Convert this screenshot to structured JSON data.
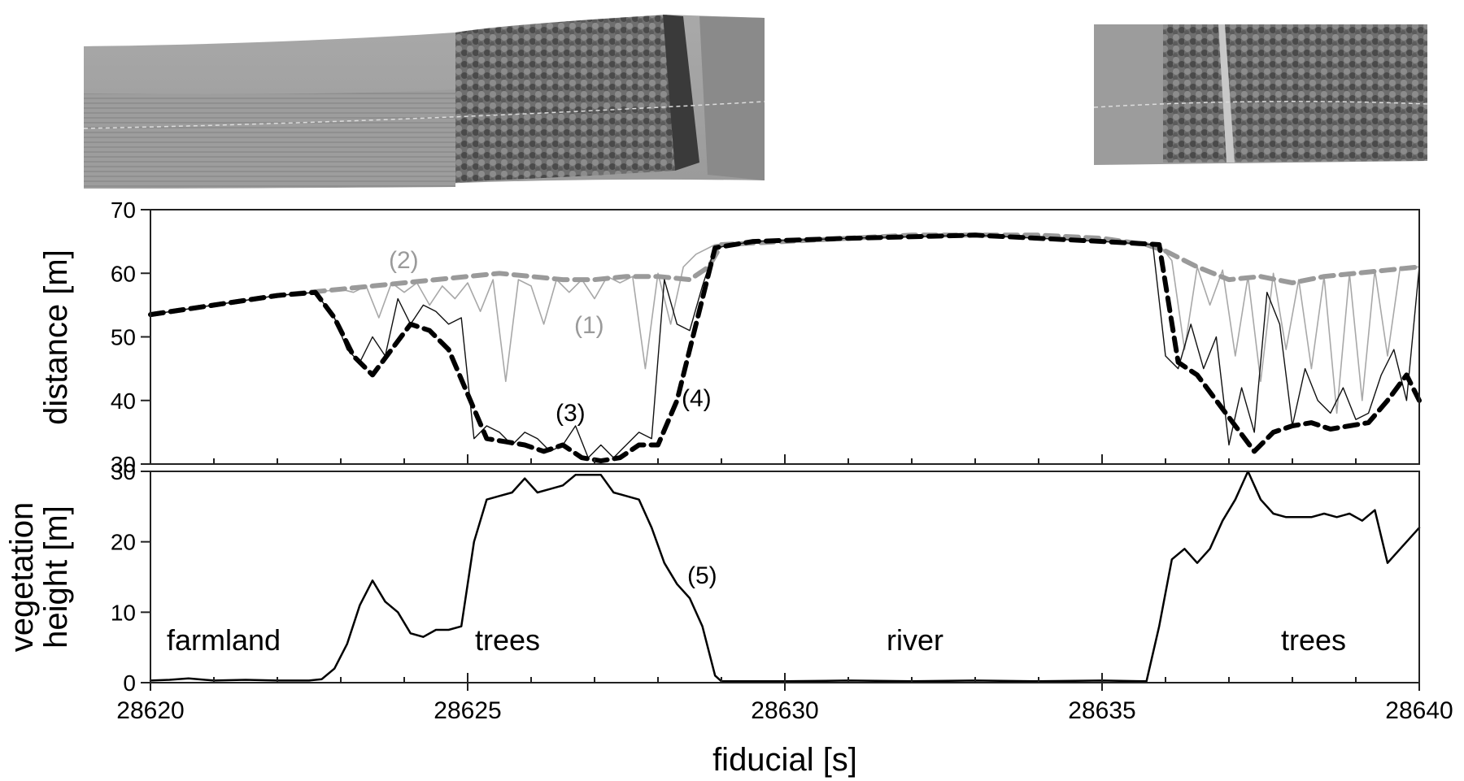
{
  "chart_data": [
    {
      "type": "line",
      "ylabel": "distance [m]",
      "xlim": [
        28620,
        28640
      ],
      "ylim": [
        30,
        70
      ],
      "yticks": [
        30,
        40,
        50,
        60,
        70
      ],
      "xticks": [
        28620,
        28625,
        28630,
        28635,
        28640
      ],
      "grid": false,
      "series": [
        {
          "id": "1",
          "style": "thin light gray",
          "x": [
            28620,
            28621,
            28622,
            28622.6,
            28623,
            28623.2,
            28623.4,
            28623.6,
            28623.8,
            28624.0,
            28624.2,
            28624.4,
            28624.6,
            28624.8,
            28625.0,
            28625.2,
            28625.4,
            28625.6,
            28625.8,
            28626.0,
            28626.2,
            28626.4,
            28626.6,
            28626.8,
            28627.0,
            28627.2,
            28627.4,
            28627.6,
            28627.8,
            28628.0,
            28628.2,
            28628.4,
            28628.6,
            28628.9,
            28629.5,
            28631,
            28633,
            28635,
            28635.9,
            28636.1,
            28636.3,
            28636.5,
            28636.7,
            28636.9,
            28637.1,
            28637.3,
            28637.5,
            28637.7,
            28637.9,
            28638.1,
            28638.3,
            28638.5,
            28638.7,
            28638.9,
            28639.1,
            28639.3,
            28639.5,
            28639.7,
            28640
          ],
          "y": [
            53.5,
            55,
            56.5,
            57,
            57.5,
            57,
            58,
            53,
            58.5,
            57,
            58.5,
            55,
            58,
            56,
            58.5,
            54,
            59,
            43,
            59,
            58,
            52,
            59,
            57,
            59,
            56,
            59.5,
            58.5,
            59.5,
            45,
            60,
            52,
            61,
            63,
            64.5,
            65,
            65.5,
            66,
            65,
            64.5,
            62,
            48,
            61,
            55,
            60.5,
            47,
            59.5,
            43,
            60,
            48,
            59,
            45,
            59.5,
            38,
            60,
            40,
            60.5,
            47,
            61,
            61
          ]
        },
        {
          "id": "2",
          "style": "thick gray dashed",
          "x": [
            28620,
            28621,
            28622,
            28622.5,
            28623,
            28623.5,
            28624,
            28624.5,
            28625,
            28625.5,
            28626,
            28626.5,
            28627,
            28627.5,
            28628,
            28628.5,
            28628.8,
            28629,
            28630,
            28631,
            28632,
            28633,
            28634,
            28635,
            28635.7,
            28636,
            28636.5,
            28637,
            28637.5,
            28638,
            28638.5,
            28639,
            28639.5,
            28640
          ],
          "y": [
            53.5,
            55,
            56.5,
            57,
            57.5,
            58,
            58.5,
            59,
            59.5,
            60,
            59.5,
            59,
            59,
            59.5,
            59.5,
            59,
            61,
            64.5,
            65,
            65.5,
            66,
            66,
            66,
            65.5,
            64.5,
            63.5,
            61,
            59,
            59.5,
            58.5,
            59.5,
            60,
            60.5,
            61
          ]
        },
        {
          "id": "3",
          "style": "thin black",
          "x": [
            28620,
            28621,
            28622,
            28622.6,
            28622.9,
            28623.1,
            28623.3,
            28623.5,
            28623.7,
            28623.9,
            28624.1,
            28624.3,
            28624.5,
            28624.7,
            28624.9,
            28625.1,
            28625.3,
            28625.5,
            28625.7,
            28625.9,
            28626.1,
            28626.3,
            28626.5,
            28626.7,
            28626.9,
            28627.1,
            28627.3,
            28627.5,
            28627.7,
            28627.9,
            28628.1,
            28628.3,
            28628.5,
            28628.7,
            28628.9,
            28629.5,
            28631,
            28633,
            28635,
            28635.8,
            28636.0,
            28636.2,
            28636.4,
            28636.6,
            28636.8,
            28637.0,
            28637.2,
            28637.4,
            28637.6,
            28637.8,
            28638.0,
            28638.2,
            28638.4,
            28638.6,
            28638.8,
            28639.0,
            28639.2,
            28639.4,
            28639.6,
            28639.8,
            28640
          ],
          "y": [
            53.5,
            55,
            56.5,
            57,
            53,
            48,
            46,
            50,
            47,
            56,
            52,
            55,
            54,
            52,
            53,
            34,
            36,
            35,
            33,
            35,
            34,
            32,
            33,
            36,
            31,
            33,
            31,
            33,
            35,
            34,
            59,
            52,
            51,
            58,
            64,
            65,
            65.5,
            66,
            65,
            64.5,
            47,
            45,
            52,
            45,
            50,
            33,
            42,
            35,
            57,
            52,
            36,
            45,
            40,
            38,
            42,
            37,
            38,
            44,
            48,
            40,
            61
          ]
        },
        {
          "id": "4",
          "style": "thick black dashed",
          "x": [
            28620,
            28621,
            28622,
            28622.6,
            28622.9,
            28623.2,
            28623.5,
            28623.8,
            28624.1,
            28624.4,
            28624.7,
            28625.0,
            28625.3,
            28625.6,
            28625.9,
            28626.2,
            28626.5,
            28626.8,
            28627.1,
            28627.4,
            28627.7,
            28628.0,
            28628.3,
            28628.6,
            28628.9,
            28629.5,
            28631,
            28633,
            28635,
            28635.9,
            28636.2,
            28636.5,
            28636.8,
            28637.1,
            28637.4,
            28637.7,
            28638.0,
            28638.3,
            28638.6,
            28638.9,
            28639.2,
            28639.5,
            28639.8,
            28640
          ],
          "y": [
            53.5,
            55,
            56.5,
            57,
            53,
            47,
            44,
            48,
            52,
            51,
            48,
            41,
            34,
            33.5,
            33,
            32,
            33,
            31,
            30.5,
            31,
            33,
            33,
            40,
            52,
            64,
            65,
            65.5,
            66,
            65,
            64.5,
            46,
            44,
            40,
            36,
            32,
            35,
            36,
            36.5,
            35.5,
            36,
            36.5,
            40,
            44,
            40
          ]
        }
      ],
      "annotations": [
        "(1)",
        "(2)",
        "(3)",
        "(4)"
      ]
    },
    {
      "type": "line",
      "ylabel_line1": "vegetation",
      "ylabel_line2": "height [m]",
      "xlabel": "fiducial [s]",
      "xlim": [
        28620,
        28640
      ],
      "ylim": [
        0,
        30
      ],
      "yticks": [
        0,
        10,
        20,
        30
      ],
      "xticks": [
        28620,
        28625,
        28630,
        28635,
        28640
      ],
      "grid": false,
      "series": [
        {
          "id": "5",
          "x": [
            28620,
            28620.3,
            28620.6,
            28621,
            28621.5,
            28622,
            28622.5,
            28622.7,
            28622.9,
            28623.1,
            28623.3,
            28623.5,
            28623.7,
            28623.9,
            28624.1,
            28624.3,
            28624.5,
            28624.7,
            28624.9,
            28625.1,
            28625.3,
            28625.5,
            28625.7,
            28625.9,
            28626.1,
            28626.3,
            28626.5,
            28626.7,
            28626.9,
            28627.1,
            28627.3,
            28627.5,
            28627.7,
            28627.9,
            28628.1,
            28628.3,
            28628.5,
            28628.7,
            28628.9,
            28629.0,
            28630,
            28631,
            28632,
            28633,
            28634,
            28635,
            28635.7,
            28635.9,
            28636.1,
            28636.3,
            28636.5,
            28636.7,
            28636.9,
            28637.1,
            28637.3,
            28637.5,
            28637.7,
            28637.9,
            28638.1,
            28638.3,
            28638.5,
            28638.7,
            28638.9,
            28639.1,
            28639.3,
            28639.5,
            28639.7,
            28640
          ],
          "y": [
            0.3,
            0.4,
            0.6,
            0.3,
            0.4,
            0.3,
            0.3,
            0.5,
            2,
            5.5,
            11,
            14.5,
            11.5,
            10,
            7,
            6.5,
            7.5,
            7.5,
            8,
            20,
            26,
            26.5,
            27,
            29,
            27,
            27.5,
            28,
            29.5,
            29.5,
            29.5,
            27,
            26.5,
            26,
            22,
            17,
            14,
            12,
            8,
            1,
            0.2,
            0.2,
            0.3,
            0.2,
            0.3,
            0.2,
            0.3,
            0.2,
            8,
            17.5,
            19,
            17,
            19,
            23,
            26,
            30,
            26,
            24,
            23.5,
            23.5,
            23.5,
            24,
            23.5,
            24,
            23,
            24.5,
            17,
            19,
            22
          ]
        }
      ],
      "annotations": [
        "(5)"
      ],
      "region_labels": [
        "farmland",
        "trees",
        "river",
        "trees"
      ]
    }
  ],
  "imagery": {
    "left_strip_label": "aerial image strip (farmland to forest)",
    "right_strip_label": "aerial image strip (forest)"
  }
}
